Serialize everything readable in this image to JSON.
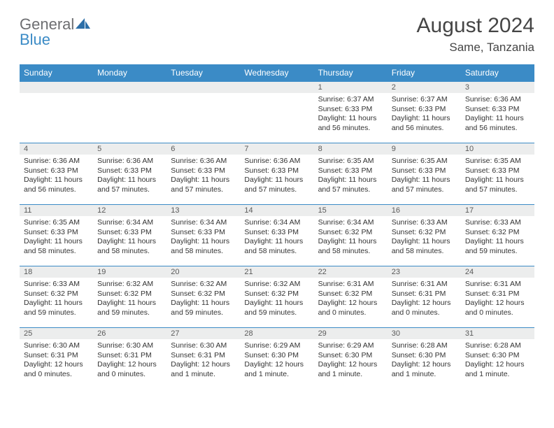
{
  "brand": {
    "general": "General",
    "blue": "Blue"
  },
  "title": "August 2024",
  "location": "Same, Tanzania",
  "colors": {
    "header_bg": "#3b8bc6",
    "header_text": "#ffffff",
    "daynum_bg": "#eceded",
    "border": "#3b8bc6",
    "body_text": "#333333",
    "title_text": "#454545"
  },
  "weekdays": [
    "Sunday",
    "Monday",
    "Tuesday",
    "Wednesday",
    "Thursday",
    "Friday",
    "Saturday"
  ],
  "weeks": [
    [
      {
        "n": "",
        "sr": "",
        "ss": "",
        "dl": ""
      },
      {
        "n": "",
        "sr": "",
        "ss": "",
        "dl": ""
      },
      {
        "n": "",
        "sr": "",
        "ss": "",
        "dl": ""
      },
      {
        "n": "",
        "sr": "",
        "ss": "",
        "dl": ""
      },
      {
        "n": "1",
        "sr": "Sunrise: 6:37 AM",
        "ss": "Sunset: 6:33 PM",
        "dl": "Daylight: 11 hours and 56 minutes."
      },
      {
        "n": "2",
        "sr": "Sunrise: 6:37 AM",
        "ss": "Sunset: 6:33 PM",
        "dl": "Daylight: 11 hours and 56 minutes."
      },
      {
        "n": "3",
        "sr": "Sunrise: 6:36 AM",
        "ss": "Sunset: 6:33 PM",
        "dl": "Daylight: 11 hours and 56 minutes."
      }
    ],
    [
      {
        "n": "4",
        "sr": "Sunrise: 6:36 AM",
        "ss": "Sunset: 6:33 PM",
        "dl": "Daylight: 11 hours and 56 minutes."
      },
      {
        "n": "5",
        "sr": "Sunrise: 6:36 AM",
        "ss": "Sunset: 6:33 PM",
        "dl": "Daylight: 11 hours and 57 minutes."
      },
      {
        "n": "6",
        "sr": "Sunrise: 6:36 AM",
        "ss": "Sunset: 6:33 PM",
        "dl": "Daylight: 11 hours and 57 minutes."
      },
      {
        "n": "7",
        "sr": "Sunrise: 6:36 AM",
        "ss": "Sunset: 6:33 PM",
        "dl": "Daylight: 11 hours and 57 minutes."
      },
      {
        "n": "8",
        "sr": "Sunrise: 6:35 AM",
        "ss": "Sunset: 6:33 PM",
        "dl": "Daylight: 11 hours and 57 minutes."
      },
      {
        "n": "9",
        "sr": "Sunrise: 6:35 AM",
        "ss": "Sunset: 6:33 PM",
        "dl": "Daylight: 11 hours and 57 minutes."
      },
      {
        "n": "10",
        "sr": "Sunrise: 6:35 AM",
        "ss": "Sunset: 6:33 PM",
        "dl": "Daylight: 11 hours and 57 minutes."
      }
    ],
    [
      {
        "n": "11",
        "sr": "Sunrise: 6:35 AM",
        "ss": "Sunset: 6:33 PM",
        "dl": "Daylight: 11 hours and 58 minutes."
      },
      {
        "n": "12",
        "sr": "Sunrise: 6:34 AM",
        "ss": "Sunset: 6:33 PM",
        "dl": "Daylight: 11 hours and 58 minutes."
      },
      {
        "n": "13",
        "sr": "Sunrise: 6:34 AM",
        "ss": "Sunset: 6:33 PM",
        "dl": "Daylight: 11 hours and 58 minutes."
      },
      {
        "n": "14",
        "sr": "Sunrise: 6:34 AM",
        "ss": "Sunset: 6:33 PM",
        "dl": "Daylight: 11 hours and 58 minutes."
      },
      {
        "n": "15",
        "sr": "Sunrise: 6:34 AM",
        "ss": "Sunset: 6:32 PM",
        "dl": "Daylight: 11 hours and 58 minutes."
      },
      {
        "n": "16",
        "sr": "Sunrise: 6:33 AM",
        "ss": "Sunset: 6:32 PM",
        "dl": "Daylight: 11 hours and 58 minutes."
      },
      {
        "n": "17",
        "sr": "Sunrise: 6:33 AM",
        "ss": "Sunset: 6:32 PM",
        "dl": "Daylight: 11 hours and 59 minutes."
      }
    ],
    [
      {
        "n": "18",
        "sr": "Sunrise: 6:33 AM",
        "ss": "Sunset: 6:32 PM",
        "dl": "Daylight: 11 hours and 59 minutes."
      },
      {
        "n": "19",
        "sr": "Sunrise: 6:32 AM",
        "ss": "Sunset: 6:32 PM",
        "dl": "Daylight: 11 hours and 59 minutes."
      },
      {
        "n": "20",
        "sr": "Sunrise: 6:32 AM",
        "ss": "Sunset: 6:32 PM",
        "dl": "Daylight: 11 hours and 59 minutes."
      },
      {
        "n": "21",
        "sr": "Sunrise: 6:32 AM",
        "ss": "Sunset: 6:32 PM",
        "dl": "Daylight: 11 hours and 59 minutes."
      },
      {
        "n": "22",
        "sr": "Sunrise: 6:31 AM",
        "ss": "Sunset: 6:32 PM",
        "dl": "Daylight: 12 hours and 0 minutes."
      },
      {
        "n": "23",
        "sr": "Sunrise: 6:31 AM",
        "ss": "Sunset: 6:31 PM",
        "dl": "Daylight: 12 hours and 0 minutes."
      },
      {
        "n": "24",
        "sr": "Sunrise: 6:31 AM",
        "ss": "Sunset: 6:31 PM",
        "dl": "Daylight: 12 hours and 0 minutes."
      }
    ],
    [
      {
        "n": "25",
        "sr": "Sunrise: 6:30 AM",
        "ss": "Sunset: 6:31 PM",
        "dl": "Daylight: 12 hours and 0 minutes."
      },
      {
        "n": "26",
        "sr": "Sunrise: 6:30 AM",
        "ss": "Sunset: 6:31 PM",
        "dl": "Daylight: 12 hours and 0 minutes."
      },
      {
        "n": "27",
        "sr": "Sunrise: 6:30 AM",
        "ss": "Sunset: 6:31 PM",
        "dl": "Daylight: 12 hours and 1 minute."
      },
      {
        "n": "28",
        "sr": "Sunrise: 6:29 AM",
        "ss": "Sunset: 6:30 PM",
        "dl": "Daylight: 12 hours and 1 minute."
      },
      {
        "n": "29",
        "sr": "Sunrise: 6:29 AM",
        "ss": "Sunset: 6:30 PM",
        "dl": "Daylight: 12 hours and 1 minute."
      },
      {
        "n": "30",
        "sr": "Sunrise: 6:28 AM",
        "ss": "Sunset: 6:30 PM",
        "dl": "Daylight: 12 hours and 1 minute."
      },
      {
        "n": "31",
        "sr": "Sunrise: 6:28 AM",
        "ss": "Sunset: 6:30 PM",
        "dl": "Daylight: 12 hours and 1 minute."
      }
    ]
  ]
}
